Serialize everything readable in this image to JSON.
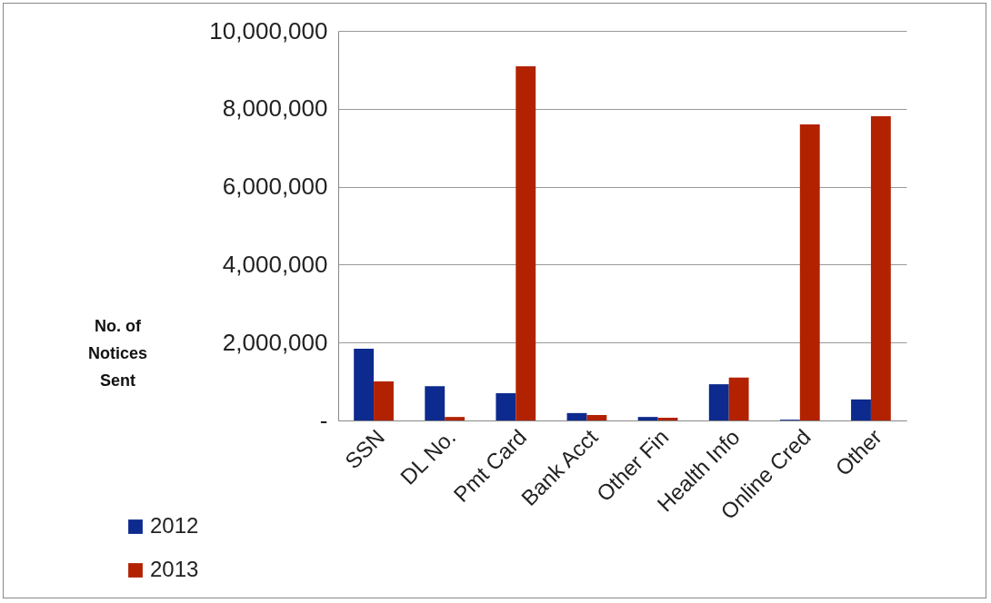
{
  "chart_data": {
    "type": "bar",
    "ylabel": "No. of Notices Sent",
    "categories": [
      "SSN",
      "DL No.",
      "Pmt Card",
      "Bank Acct",
      "Other Fin",
      "Health Info",
      "Online Cred",
      "Other"
    ],
    "series": [
      {
        "name": "2012",
        "color": "#0d2a8e",
        "values": [
          1840000,
          880000,
          700000,
          190000,
          90000,
          930000,
          20000,
          540000
        ]
      },
      {
        "name": "2013",
        "color": "#b22200",
        "values": [
          1000000,
          90000,
          9090000,
          140000,
          70000,
          1100000,
          7600000,
          7810000
        ]
      }
    ],
    "ylim": [
      0,
      10000000
    ],
    "yticks": [
      {
        "value": 0,
        "label": "-"
      },
      {
        "value": 2000000,
        "label": "2,000,000"
      },
      {
        "value": 4000000,
        "label": "4,000,000"
      },
      {
        "value": 6000000,
        "label": "6,000,000"
      },
      {
        "value": 8000000,
        "label": "8,000,000"
      },
      {
        "value": 10000000,
        "label": "10,000,000"
      }
    ],
    "grid": "y",
    "legend": "bottom left"
  }
}
